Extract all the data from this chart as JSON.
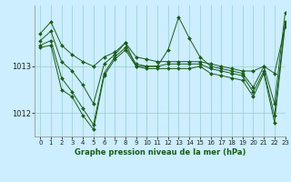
{
  "title": "Graphe pression niveau de la mer (hPa)",
  "bg_color": "#cceeff",
  "grid_color": "#99cccc",
  "line_color": "#1a5c1a",
  "xlim": [
    -0.5,
    23
  ],
  "ylim": [
    1011.5,
    1014.3
  ],
  "yticks": [
    1012,
    1013
  ],
  "xticks": [
    0,
    1,
    2,
    3,
    4,
    5,
    6,
    7,
    8,
    9,
    10,
    11,
    12,
    13,
    14,
    15,
    16,
    17,
    18,
    19,
    20,
    21,
    22,
    23
  ],
  "series": [
    [
      1013.7,
      1013.95,
      1013.45,
      1013.25,
      1013.1,
      1013.0,
      1013.2,
      1013.3,
      1013.5,
      1013.2,
      1013.15,
      1013.1,
      1013.1,
      1013.1,
      1013.1,
      1013.1,
      1013.05,
      1013.0,
      1012.95,
      1012.9,
      1012.9,
      1013.0,
      1012.85,
      1013.85
    ],
    [
      1013.55,
      1013.75,
      1013.1,
      1012.9,
      1012.6,
      1012.2,
      1013.05,
      1013.25,
      1013.5,
      1013.0,
      1013.0,
      1013.0,
      1013.35,
      1014.05,
      1013.6,
      1013.2,
      1013.0,
      1012.95,
      1012.9,
      1012.85,
      1012.55,
      1013.0,
      1012.2,
      1014.15
    ],
    [
      1013.45,
      1013.55,
      1012.75,
      1012.45,
      1012.1,
      1011.75,
      1012.85,
      1013.2,
      1013.4,
      1013.05,
      1013.0,
      1013.0,
      1013.05,
      1013.05,
      1013.05,
      1013.05,
      1012.95,
      1012.9,
      1012.85,
      1012.8,
      1012.45,
      1012.9,
      1011.95,
      1013.95
    ],
    [
      1013.4,
      1013.45,
      1012.5,
      1012.35,
      1011.95,
      1011.65,
      1012.8,
      1013.15,
      1013.35,
      1013.0,
      1012.95,
      1012.95,
      1012.95,
      1012.95,
      1012.95,
      1013.0,
      1012.85,
      1012.8,
      1012.75,
      1012.7,
      1012.35,
      1012.85,
      1011.8,
      1013.9
    ]
  ]
}
